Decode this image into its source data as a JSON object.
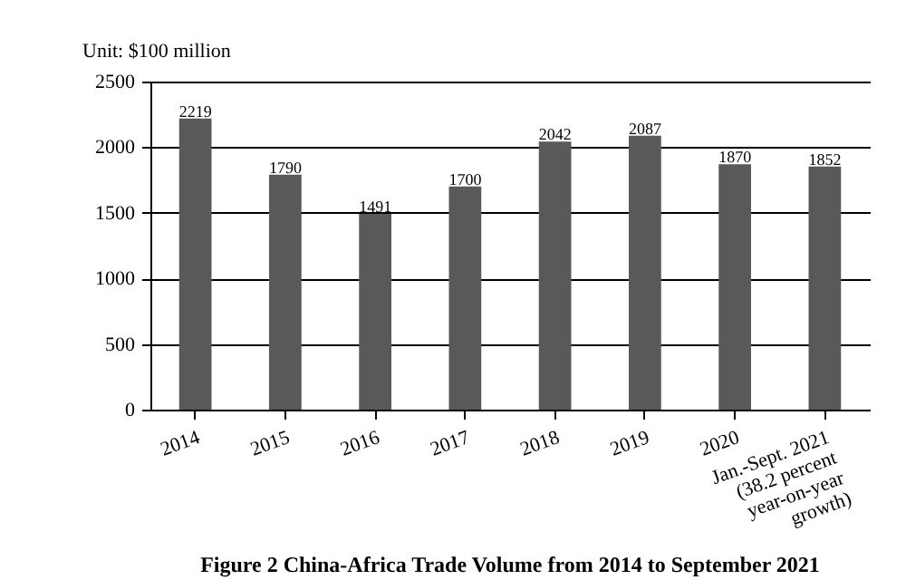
{
  "chart_data": {
    "type": "bar",
    "title": "Figure 2    China-Africa Trade Volume from 2014 to September 2021",
    "ylabel": "Unit: $100 million",
    "categories": [
      "2014",
      "2015",
      "2016",
      "2017",
      "2018",
      "2019",
      "2020",
      "Jan.-Sept. 2021 (38.2 percent year-on-year growth)"
    ],
    "values": [
      2219,
      1790,
      1491,
      1700,
      2042,
      2087,
      1870,
      1852
    ],
    "color": "#595959",
    "ylim": [
      0,
      2500
    ],
    "yticks": [
      0,
      500,
      1000,
      1500,
      2000,
      2500
    ],
    "grid": "y",
    "data_labels": true
  }
}
